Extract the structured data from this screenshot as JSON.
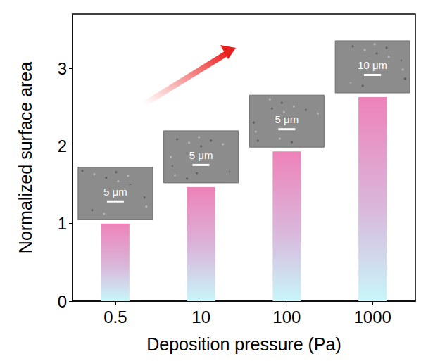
{
  "chart_data": {
    "type": "bar",
    "x_label": "Deposition pressure (Pa)",
    "y_label": "Normalized surface area",
    "categories": [
      "0.5",
      "10",
      "100",
      "1000"
    ],
    "values": [
      1.0,
      1.47,
      1.93,
      2.63
    ],
    "color": "#ee82b9",
    "ylim": [
      0,
      3.7
    ],
    "yticks": [
      0,
      1,
      2,
      3
    ],
    "annotations": [
      "5 μm",
      "5 μm",
      "5 μm",
      "10 μm"
    ]
  }
}
